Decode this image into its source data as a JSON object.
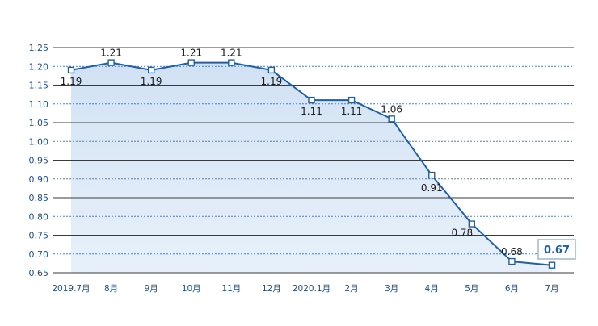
{
  "chart_data": {
    "type": "line",
    "categories": [
      "2019.7月",
      "8月",
      "9月",
      "10月",
      "11月",
      "12月",
      "2020.1月",
      "2月",
      "3月",
      "4月",
      "5月",
      "6月",
      "7月"
    ],
    "series": [
      {
        "values": [
          1.19,
          1.21,
          1.19,
          1.21,
          1.21,
          1.19,
          1.11,
          1.11,
          1.06,
          0.91,
          0.78,
          0.68,
          0.67
        ],
        "data_labels": [
          "1.19",
          "1.21",
          "1.19",
          "1.21",
          "1.21",
          "1.19",
          "1.11",
          "1.11",
          "1.06",
          "0.91",
          "0.78",
          "0.68",
          "0.67"
        ]
      }
    ],
    "y_ticks": [
      "0.65",
      "0.70",
      "0.75",
      "0.80",
      "0.85",
      "0.90",
      "0.95",
      "1.00",
      "1.05",
      "1.10",
      "1.15",
      "1.20",
      "1.25"
    ],
    "ylim": [
      0.65,
      1.25
    ],
    "highlighted_label": "0.67",
    "colors": {
      "line": "#1f5fa8",
      "axis_text": "#1f4f8f",
      "grid_solid": "#3a3a3a",
      "grid_dashed": "#4a7fc1",
      "area_fill": "#cfe0f3",
      "highlight_border": "#9fb6cf",
      "highlight_text": "#1f5fa8"
    }
  }
}
